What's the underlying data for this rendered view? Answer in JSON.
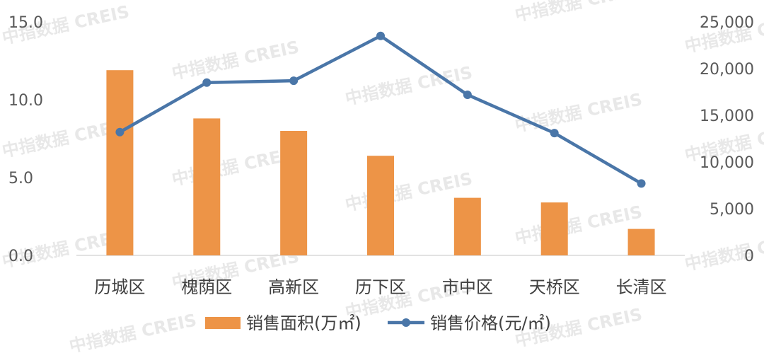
{
  "watermark": "中指数据 CREIS",
  "chart_data": {
    "type": "bar",
    "categories": [
      "历城区",
      "槐荫区",
      "高新区",
      "历下区",
      "市中区",
      "天桥区",
      "长清区"
    ],
    "series": [
      {
        "name": "销售面积(万㎡)",
        "type": "bar",
        "axis": "left",
        "color": "#ED9447",
        "values": [
          11.9,
          8.8,
          8.0,
          6.4,
          3.7,
          3.4,
          1.7
        ]
      },
      {
        "name": "销售价格(元/㎡)",
        "type": "line",
        "axis": "right",
        "color": "#4A76A8",
        "values": [
          13200,
          18500,
          18700,
          23500,
          17200,
          13100,
          7700
        ]
      }
    ],
    "y_left": {
      "ylim": [
        0,
        15
      ],
      "ticks": [
        "0.0",
        "5.0",
        "10.0",
        "15.0"
      ]
    },
    "y_right": {
      "ylim": [
        0,
        25000
      ],
      "ticks": [
        "0",
        "5,000",
        "10,000",
        "15,000",
        "20,000",
        "25,000"
      ]
    },
    "legend": "bottom",
    "grid": false
  }
}
